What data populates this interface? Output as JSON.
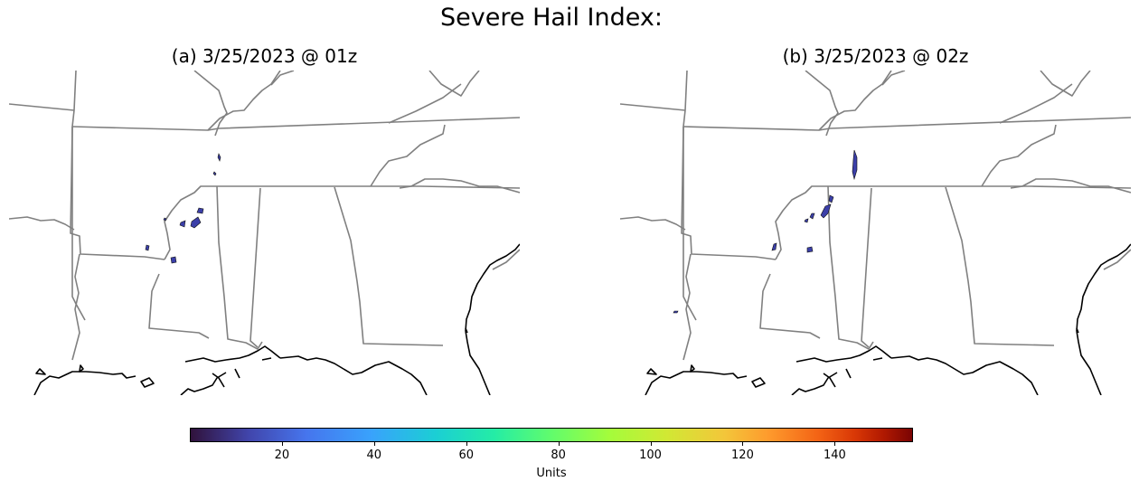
{
  "figure": {
    "title": "Severe Hail Index:",
    "panels": [
      {
        "title": "(a) 3/25/2023 @ 01z"
      },
      {
        "title": "(b) 3/25/2023 @ 02z"
      }
    ]
  },
  "colorbar": {
    "label": "Units",
    "colormap": "turbo",
    "range": [
      0,
      157
    ],
    "ticks": [
      {
        "value": 20,
        "label": "20"
      },
      {
        "value": 40,
        "label": "40"
      },
      {
        "value": 60,
        "label": "60"
      },
      {
        "value": 80,
        "label": "80"
      },
      {
        "value": 100,
        "label": "100"
      },
      {
        "value": 120,
        "label": "120"
      },
      {
        "value": 140,
        "label": "140"
      }
    ]
  },
  "colors": {
    "state_borders": "#808080",
    "coastline": "#000000",
    "hail_low": "#3b3fa8"
  }
}
